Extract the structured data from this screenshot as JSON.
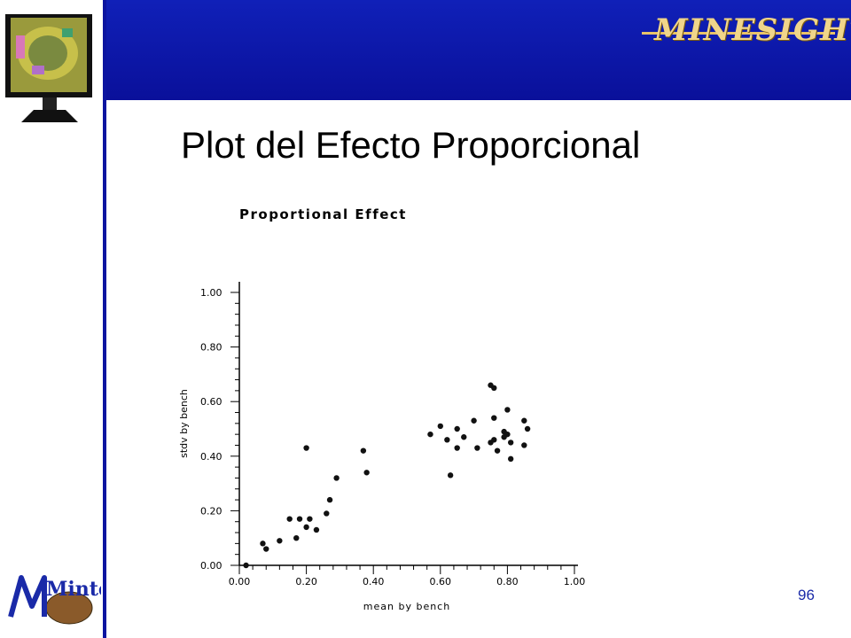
{
  "header": {
    "brand_logo_text": "MINESIGHT",
    "colors": {
      "banner": "#0c14a0",
      "accent": "#e8c36a"
    }
  },
  "slide": {
    "title": "Plot del Efecto Proporcional",
    "page_number": "96"
  },
  "footer": {
    "logo_text": "Mintec"
  },
  "icons": {
    "monitor": "monitor-icon",
    "logo": "mintec-logo-icon"
  },
  "chart_data": {
    "type": "scatter",
    "title": "Proportional Effect",
    "xlabel": "mean by bench",
    "ylabel": "stdv by bench",
    "xlim": [
      0.0,
      1.0
    ],
    "ylim": [
      0.0,
      1.0
    ],
    "xticks": [
      "0.00",
      "0.20",
      "0.40",
      "0.60",
      "0.80",
      "1.00"
    ],
    "yticks": [
      "0.00",
      "0.20",
      "0.40",
      "0.60",
      "0.80",
      "1.00"
    ],
    "grid": false,
    "points": [
      [
        0.02,
        0.0
      ],
      [
        0.07,
        0.08
      ],
      [
        0.08,
        0.06
      ],
      [
        0.12,
        0.09
      ],
      [
        0.15,
        0.17
      ],
      [
        0.17,
        0.1
      ],
      [
        0.18,
        0.17
      ],
      [
        0.2,
        0.14
      ],
      [
        0.21,
        0.17
      ],
      [
        0.23,
        0.13
      ],
      [
        0.26,
        0.19
      ],
      [
        0.27,
        0.24
      ],
      [
        0.29,
        0.32
      ],
      [
        0.2,
        0.43
      ],
      [
        0.37,
        0.42
      ],
      [
        0.38,
        0.34
      ],
      [
        0.57,
        0.48
      ],
      [
        0.6,
        0.51
      ],
      [
        0.62,
        0.46
      ],
      [
        0.63,
        0.33
      ],
      [
        0.65,
        0.43
      ],
      [
        0.65,
        0.5
      ],
      [
        0.67,
        0.47
      ],
      [
        0.7,
        0.53
      ],
      [
        0.71,
        0.43
      ],
      [
        0.75,
        0.66
      ],
      [
        0.76,
        0.65
      ],
      [
        0.75,
        0.45
      ],
      [
        0.76,
        0.46
      ],
      [
        0.76,
        0.54
      ],
      [
        0.77,
        0.42
      ],
      [
        0.79,
        0.49
      ],
      [
        0.79,
        0.47
      ],
      [
        0.8,
        0.57
      ],
      [
        0.8,
        0.48
      ],
      [
        0.81,
        0.45
      ],
      [
        0.81,
        0.39
      ],
      [
        0.85,
        0.53
      ],
      [
        0.85,
        0.44
      ],
      [
        0.86,
        0.5
      ]
    ]
  }
}
